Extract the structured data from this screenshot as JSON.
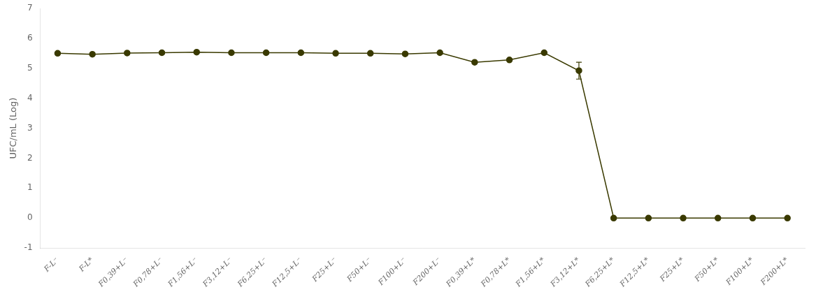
{
  "chart_data": {
    "type": "line",
    "ylabel": "UFC/mL (Log)",
    "categories": [
      "F-L⁻",
      "F-L*",
      "F0,39+L⁻",
      "F0,78+L⁻",
      "F1,56+L⁻",
      "F3,12+L⁻",
      "F6,25+L⁻",
      "F12,5+L⁻",
      "F25+L⁻",
      "F50+L⁻",
      "F100+L⁻",
      "F200+L⁻",
      "F0,39+L*",
      "F0,78+L*",
      "F1,56+L*",
      "F3,12+L*",
      "F6,25+L*",
      "F12,5+L*",
      "F25+L*",
      "F50+L*",
      "F100+L*",
      "F200+L*"
    ],
    "values": [
      5.5,
      5.47,
      5.51,
      5.52,
      5.54,
      5.52,
      5.52,
      5.52,
      5.5,
      5.5,
      5.48,
      5.52,
      5.2,
      5.28,
      5.52,
      4.92,
      0.0,
      0.0,
      0.0,
      0.0,
      0.0,
      0.0
    ],
    "errors": [
      0.04,
      0.04,
      0.04,
      0.04,
      0.04,
      0.04,
      0.04,
      0.04,
      0.04,
      0.04,
      0.04,
      0.04,
      0.04,
      0.04,
      0.04,
      0.28,
      0.04,
      0.04,
      0.04,
      0.04,
      0.04,
      0.04
    ],
    "color": "#3a3a00",
    "marker": "circle",
    "line_style": "solid",
    "ylim": [
      -1,
      7
    ],
    "yticks": [
      -1,
      0,
      1,
      2,
      3,
      4,
      5,
      6,
      7
    ],
    "grid": false
  }
}
